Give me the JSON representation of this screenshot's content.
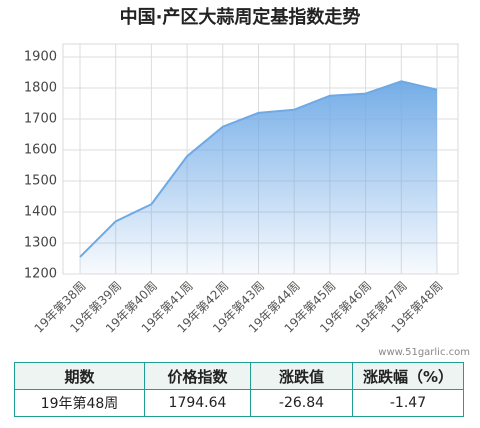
{
  "chart_data": {
    "type": "area",
    "title": "中国·产区大蒜周定基指数走势",
    "categories": [
      "19年第38周",
      "19年第39周",
      "19年第40周",
      "19年第41周",
      "19年第42周",
      "19年第43周",
      "19年第44周",
      "19年第45周",
      "19年第46周",
      "19年第47周",
      "19年第48周"
    ],
    "values": [
      1255,
      1370,
      1425,
      1580,
      1675,
      1720,
      1730,
      1775,
      1782,
      1821.48,
      1794.64
    ],
    "color": "#6ea9e6",
    "ylim": [
      1200,
      1900
    ],
    "yticks": [
      1200,
      1300,
      1400,
      1500,
      1600,
      1700,
      1800,
      1900
    ],
    "grid": true,
    "watermark": "www.51garlic.com"
  },
  "table": {
    "header": [
      "期数",
      "价格指数",
      "涨跌值",
      "涨跌幅（%）"
    ],
    "rows": [
      [
        "19年第48周",
        "1794.64",
        "-26.84",
        "-1.47"
      ]
    ]
  }
}
